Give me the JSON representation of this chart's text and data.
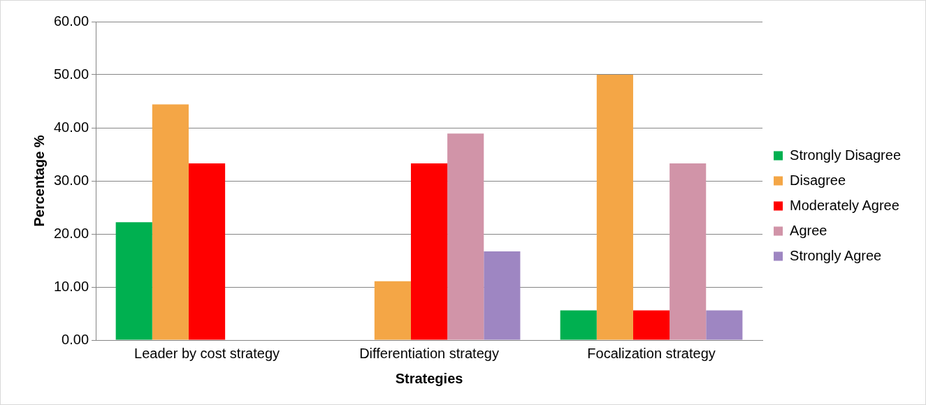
{
  "chart_data": {
    "type": "bar",
    "xlabel": "Strategies",
    "ylabel": "Percentage %",
    "categories": [
      "Leader by cost strategy",
      "Differentiation strategy",
      "Focalization strategy"
    ],
    "series": [
      {
        "name": "Strongly Disagree",
        "color": "#00b050",
        "values": [
          22.2,
          0,
          5.6
        ]
      },
      {
        "name": "Disagree",
        "color": "#f4a646",
        "values": [
          44.4,
          11.1,
          50
        ]
      },
      {
        "name": "Moderately Agree",
        "color": "#ff0000",
        "values": [
          33.3,
          33.3,
          5.6
        ]
      },
      {
        "name": "Agree",
        "color": "#d194a8",
        "values": [
          0,
          38.9,
          33.3
        ]
      },
      {
        "name": "Strongly Agree",
        "color": "#9e86c2",
        "values": [
          0,
          16.7,
          5.6
        ]
      }
    ],
    "ylim": [
      0,
      60
    ],
    "yticks": [
      {
        "value": 0,
        "label": "0.00"
      },
      {
        "value": 10,
        "label": "10.00"
      },
      {
        "value": 20,
        "label": "20.00"
      },
      {
        "value": 30,
        "label": "30.00"
      },
      {
        "value": 40,
        "label": "40.00"
      },
      {
        "value": 50,
        "label": "50.00"
      },
      {
        "value": 60,
        "label": "60.00"
      }
    ],
    "grid": "y",
    "legend": "right"
  }
}
